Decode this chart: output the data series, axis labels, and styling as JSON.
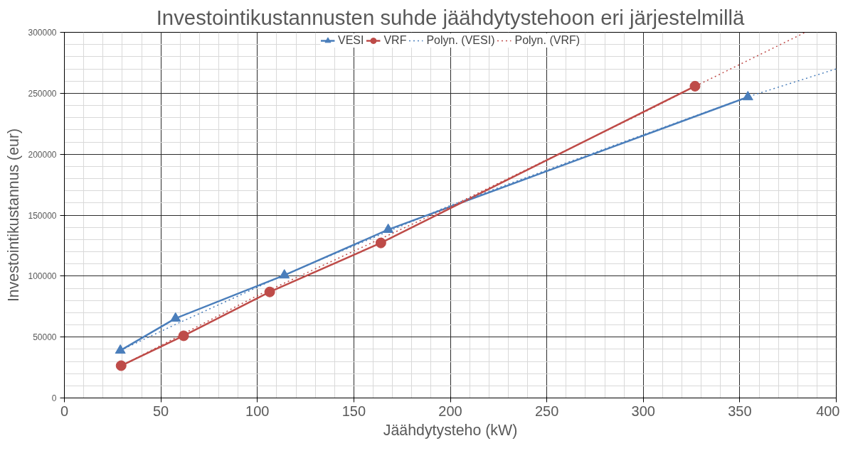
{
  "chart_data": {
    "type": "line",
    "title": "Investointikustannusten suhde jäähdytystehoon eri järjestelmillä",
    "xlabel": "Jäähdytysteho (kW)",
    "ylabel": "Investointikustannus (eur)",
    "xlim": [
      0,
      400
    ],
    "xticks": [
      0,
      50,
      100,
      150,
      200,
      250,
      300,
      350,
      400
    ],
    "ylim": [
      0,
      300000
    ],
    "yticks": [
      0,
      50000,
      100000,
      150000,
      200000,
      250000,
      300000
    ],
    "grid": true,
    "legend": "top",
    "series": [
      {
        "name": "VESI",
        "color": "#4a7ebb",
        "marker": "triangle",
        "line_style": "solid",
        "x": [
          29,
          57.6,
          114,
          167.8,
          354.2
        ],
        "values": [
          39000,
          65300,
          100700,
          138100,
          246900
        ]
      },
      {
        "name": "VRF",
        "color": "#be4b48",
        "marker": "circle",
        "line_style": "solid",
        "x": [
          29.4,
          61.8,
          106.4,
          164,
          326.8
        ],
        "values": [
          26500,
          51000,
          87000,
          127200,
          255800
        ]
      },
      {
        "name": "Polyn. (VESI)",
        "color": "#4a7ebb",
        "marker": "none",
        "line_style": "dotted",
        "x": [
          29,
          57,
          114,
          200,
          300,
          354,
          400
        ],
        "values": [
          39000,
          59900,
          101000,
          158000,
          216000,
          247000,
          270000
        ]
      },
      {
        "name": "Polyn. (VRF)",
        "color": "#be4b48",
        "marker": "none",
        "line_style": "dotted",
        "x": [
          29,
          100,
          200,
          300,
          327,
          384
        ],
        "values": [
          26000,
          84000,
          157000,
          234000,
          255800,
          300000
        ]
      }
    ]
  }
}
